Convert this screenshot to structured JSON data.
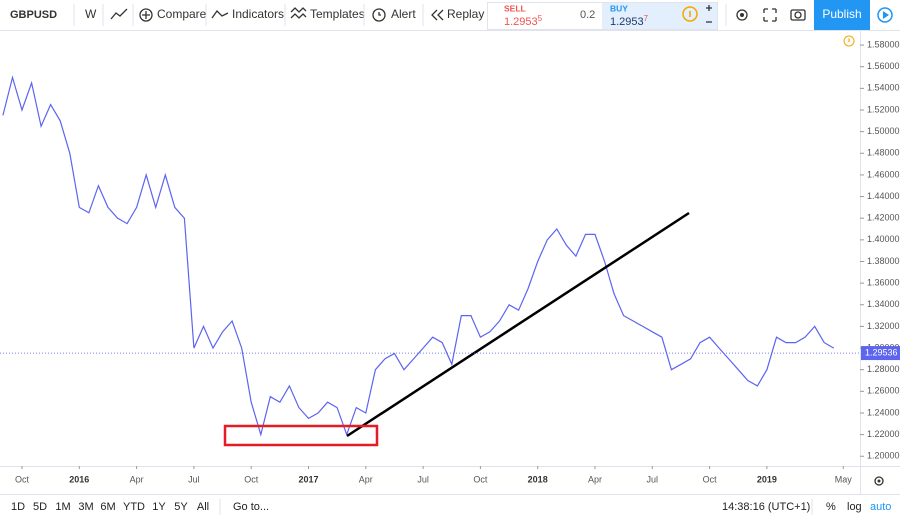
{
  "toolbar": {
    "symbol": "GBPUSD",
    "interval": "W",
    "compare": "Compare",
    "indicators": "Indicators",
    "templates": "Templates",
    "alert": "Alert",
    "replay": "Replay",
    "sell_label": "SELL",
    "sell_price": "1.2953",
    "sell_pip": "5",
    "spread": "0.2",
    "buy_label": "BUY",
    "buy_price": "1.2953",
    "buy_pip": "7",
    "publish": "Publish"
  },
  "chart_data": {
    "type": "line",
    "color": "#5c64f0",
    "categories": [
      null,
      null,
      "Oct",
      null,
      null,
      null,
      null,
      null,
      "2016",
      null,
      null,
      null,
      null,
      null,
      "Apr",
      null,
      null,
      null,
      null,
      null,
      "Jul",
      null,
      null,
      null,
      null,
      null,
      "Oct",
      null,
      null,
      null,
      null,
      null,
      "2017",
      null,
      null,
      null,
      null,
      null,
      "Apr",
      null,
      null,
      null,
      null,
      null,
      "Jul",
      null,
      null,
      null,
      null,
      null,
      "Oct",
      null,
      null,
      null,
      null,
      null,
      "2018",
      null,
      null,
      null,
      null,
      null,
      "Apr",
      null,
      null,
      null,
      null,
      null,
      "Jul",
      null,
      null,
      null,
      null,
      null,
      "Oct",
      null,
      null,
      null,
      null,
      null,
      "2019",
      null,
      null,
      null,
      null,
      null,
      null,
      null,
      "May"
    ],
    "values": [
      1.515,
      1.55,
      1.52,
      1.545,
      1.505,
      1.525,
      1.51,
      1.48,
      1.43,
      1.425,
      1.45,
      1.43,
      1.42,
      1.415,
      1.43,
      1.46,
      1.43,
      1.46,
      1.43,
      1.42,
      1.3,
      1.32,
      1.3,
      1.315,
      1.325,
      1.3,
      1.25,
      1.22,
      1.255,
      1.25,
      1.265,
      1.245,
      1.235,
      1.24,
      1.25,
      1.245,
      1.22,
      1.245,
      1.24,
      1.28,
      1.29,
      1.295,
      1.28,
      1.29,
      1.3,
      1.31,
      1.305,
      1.285,
      1.33,
      1.33,
      1.31,
      1.315,
      1.325,
      1.34,
      1.335,
      1.355,
      1.38,
      1.4,
      1.41,
      1.395,
      1.385,
      1.405,
      1.405,
      1.38,
      1.35,
      1.33,
      1.325,
      1.32,
      1.315,
      1.31,
      1.28,
      1.285,
      1.29,
      1.305,
      1.31,
      1.3,
      1.29,
      1.28,
      1.27,
      1.265,
      1.28,
      1.31,
      1.305,
      1.305,
      1.31,
      1.32,
      1.305,
      1.3,
      null
    ],
    "ylim": [
      1.191,
      1.593
    ],
    "yticks": [
      {
        "value": 1.2,
        "label": "1.20000"
      },
      {
        "value": 1.22,
        "label": "1.22000"
      },
      {
        "value": 1.24,
        "label": "1.24000"
      },
      {
        "value": 1.26,
        "label": "1.26000"
      },
      {
        "value": 1.28,
        "label": "1.28000"
      },
      {
        "value": 1.3,
        "label": "1.30000"
      },
      {
        "value": 1.32,
        "label": "1.32000"
      },
      {
        "value": 1.34,
        "label": "1.34000"
      },
      {
        "value": 1.36,
        "label": "1.36000"
      },
      {
        "value": 1.38,
        "label": "1.38000"
      },
      {
        "value": 1.4,
        "label": "1.40000"
      },
      {
        "value": 1.42,
        "label": "1.42000"
      },
      {
        "value": 1.44,
        "label": "1.44000"
      },
      {
        "value": 1.46,
        "label": "1.46000"
      },
      {
        "value": 1.48,
        "label": "1.48000"
      },
      {
        "value": 1.5,
        "label": "1.50000"
      },
      {
        "value": 1.52,
        "label": "1.52000"
      },
      {
        "value": 1.54,
        "label": "1.54000"
      },
      {
        "value": 1.56,
        "label": "1.56000"
      },
      {
        "value": 1.58,
        "label": "1.58000"
      }
    ],
    "price_line": {
      "value": 1.29536,
      "label": "1.29536"
    },
    "grid": false
  },
  "bottom_bar": {
    "ranges": [
      "1D",
      "5D",
      "1M",
      "3M",
      "6M",
      "YTD",
      "1Y",
      "5Y",
      "All"
    ],
    "goto": "Go to...",
    "time": "14:38:16 (UTC+1)",
    "percent": "%",
    "log": "log",
    "auto": "auto"
  }
}
